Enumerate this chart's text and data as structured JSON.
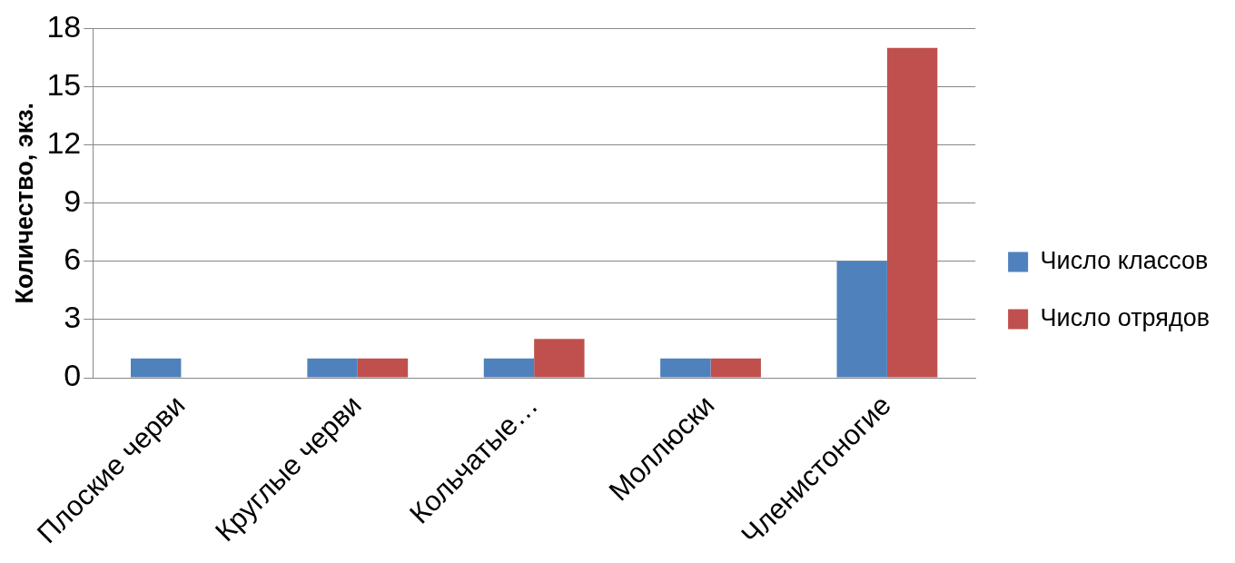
{
  "chart_data": {
    "type": "bar",
    "ylabel": "Количество, экз.",
    "categories": [
      "Плоские черви",
      "Круглые черви",
      "Кольчатые…",
      "Моллюски",
      "Членистоногие"
    ],
    "series": [
      {
        "name": "Число классов",
        "color": "#4f81bd",
        "values": [
          1,
          1,
          1,
          1,
          6
        ]
      },
      {
        "name": "Число отрядов",
        "color": "#c0504d",
        "values": [
          0,
          1,
          2,
          1,
          17
        ]
      }
    ],
    "ylim": [
      0,
      18
    ],
    "yticks": [
      0,
      3,
      6,
      9,
      12,
      15,
      18
    ],
    "grid": "y",
    "legend": "right"
  }
}
